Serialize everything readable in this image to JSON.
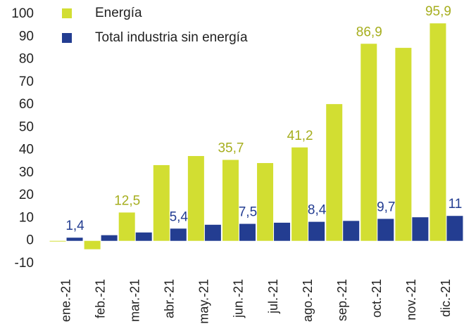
{
  "chart_data": {
    "type": "bar",
    "categories": [
      "ene.-21",
      "feb.-21",
      "mar.-21",
      "abr.-21",
      "may.-21",
      "jun.-21",
      "jul.-21",
      "ago.-21",
      "sep.-21",
      "oct.-21",
      "nov.-21",
      "dic.-21"
    ],
    "series": [
      {
        "name": "Energía",
        "color": "#d2de32",
        "label_color": "#a6ae1e",
        "values": [
          -0.3,
          -3.7,
          12.5,
          33.4,
          37.4,
          35.7,
          34.3,
          41.2,
          60.3,
          86.9,
          85.1,
          95.9
        ],
        "value_labels": [
          null,
          null,
          "12,5",
          null,
          null,
          "35,7",
          null,
          "41,2",
          null,
          "86,9",
          null,
          "95,9"
        ]
      },
      {
        "name": "Total industria sin energía",
        "color": "#233d91",
        "label_color": "#233d91",
        "values": [
          1.4,
          2.5,
          3.7,
          5.4,
          7.1,
          7.5,
          8.0,
          8.4,
          8.8,
          9.7,
          10.4,
          11
        ],
        "value_labels": [
          "1,4",
          null,
          null,
          "5,4",
          null,
          "7,5",
          null,
          "8,4",
          null,
          "9,7",
          null,
          "11"
        ]
      }
    ],
    "ylim": [
      -10,
      100
    ],
    "yticks": [
      -10,
      0,
      10,
      20,
      30,
      40,
      50,
      60,
      70,
      80,
      90,
      100
    ],
    "grid": false,
    "legend": "top-left"
  }
}
